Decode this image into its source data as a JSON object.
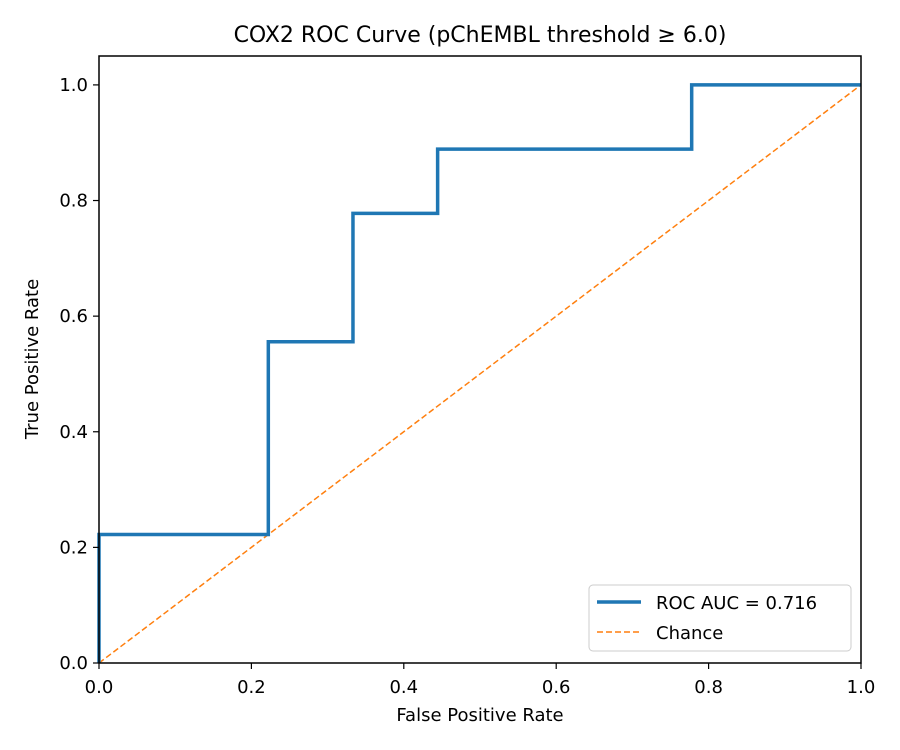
{
  "chart_data": {
    "type": "line",
    "title": "COX2 ROC Curve (pChEMBL threshold ≥ 6.0)",
    "xlabel": "False Positive Rate",
    "ylabel": "True Positive Rate",
    "xlim": [
      0.0,
      1.0
    ],
    "ylim": [
      0.0,
      1.05
    ],
    "xticks": [
      0.0,
      0.2,
      0.4,
      0.6,
      0.8,
      1.0
    ],
    "yticks": [
      0.0,
      0.2,
      0.4,
      0.6,
      0.8,
      1.0
    ],
    "xtick_labels": [
      "0.0",
      "0.2",
      "0.4",
      "0.6",
      "0.8",
      "1.0"
    ],
    "ytick_labels": [
      "0.0",
      "0.2",
      "0.4",
      "0.6",
      "0.8",
      "1.0"
    ],
    "grid": false,
    "legend_position": "lower-right",
    "series": [
      {
        "name": "ROC AUC = 0.716",
        "color": "#1f77b4",
        "style": "solid",
        "x": [
          0.0,
          0.0,
          0.0,
          0.2222,
          0.2222,
          0.3333,
          0.3333,
          0.4444,
          0.4444,
          0.7778,
          0.7778,
          1.0
        ],
        "y": [
          0.0,
          0.1111,
          0.2222,
          0.2222,
          0.5556,
          0.5556,
          0.7778,
          0.7778,
          0.8889,
          0.8889,
          1.0,
          1.0
        ]
      },
      {
        "name": "Chance",
        "color": "#ff7f0e",
        "style": "dashed",
        "x": [
          0.0,
          1.0
        ],
        "y": [
          0.0,
          1.0
        ]
      }
    ]
  }
}
